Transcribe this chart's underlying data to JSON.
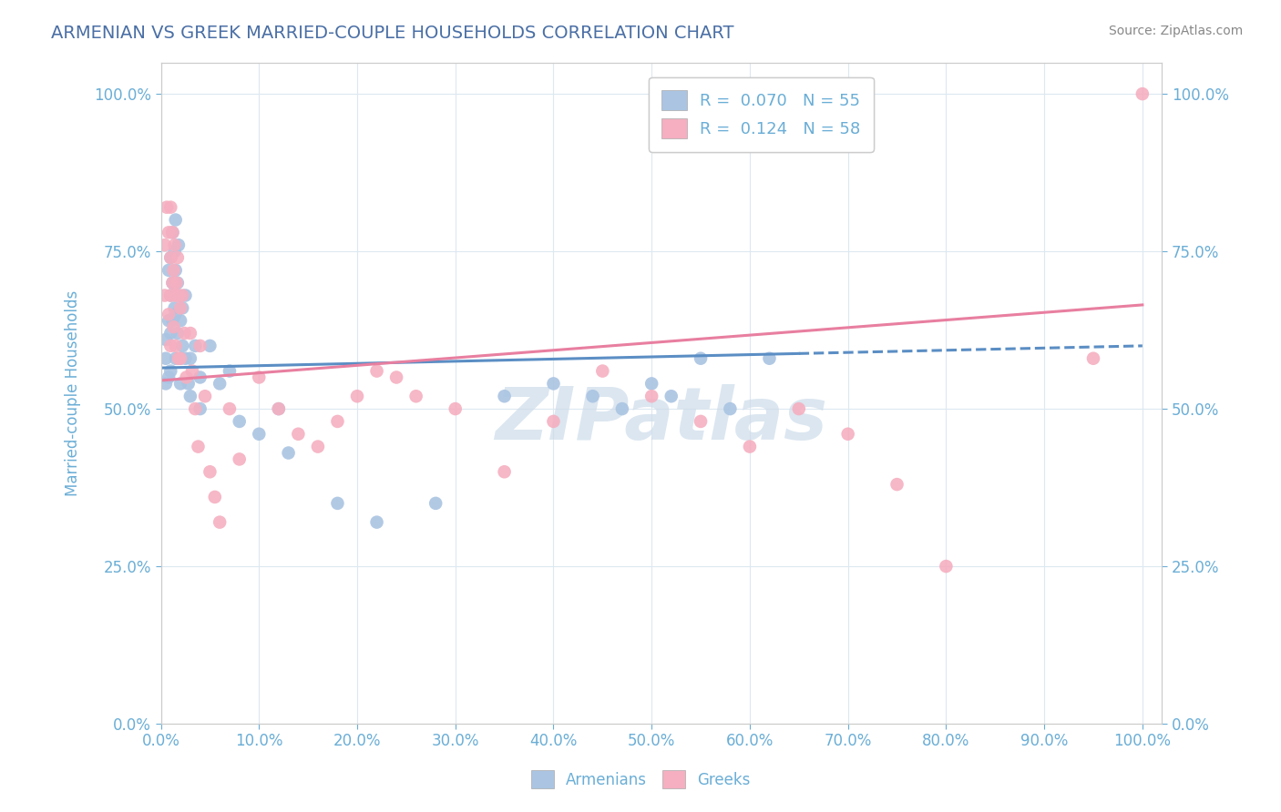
{
  "title": "ARMENIAN VS GREEK MARRIED-COUPLE HOUSEHOLDS CORRELATION CHART",
  "source": "Source: ZipAtlas.com",
  "ylabel": "Married-couple Households",
  "armenian_R": 0.07,
  "armenian_N": 55,
  "greek_R": 0.124,
  "greek_N": 58,
  "armenian_color": "#aac4e2",
  "greek_color": "#f5afc0",
  "armenian_line_color": "#5b8ec4",
  "greek_line_color": "#e87fa0",
  "title_color": "#4a6fa5",
  "source_color": "#888888",
  "axis_color": "#6baed6",
  "watermark_color": "#cddcea",
  "background_color": "#ffffff",
  "grid_color": "#dce8f0",
  "armenian_scatter_x": [
    0.005,
    0.005,
    0.005,
    0.008,
    0.008,
    0.008,
    0.01,
    0.01,
    0.01,
    0.01,
    0.012,
    0.012,
    0.012,
    0.014,
    0.014,
    0.015,
    0.015,
    0.015,
    0.015,
    0.017,
    0.017,
    0.018,
    0.018,
    0.02,
    0.02,
    0.02,
    0.022,
    0.022,
    0.025,
    0.025,
    0.028,
    0.03,
    0.03,
    0.035,
    0.04,
    0.04,
    0.05,
    0.06,
    0.07,
    0.08,
    0.1,
    0.12,
    0.13,
    0.18,
    0.22,
    0.28,
    0.35,
    0.4,
    0.44,
    0.47,
    0.5,
    0.52,
    0.55,
    0.58,
    0.62
  ],
  "armenian_scatter_y": [
    0.58,
    0.54,
    0.61,
    0.72,
    0.64,
    0.55,
    0.74,
    0.68,
    0.62,
    0.56,
    0.78,
    0.7,
    0.64,
    0.75,
    0.66,
    0.8,
    0.72,
    0.65,
    0.58,
    0.7,
    0.62,
    0.76,
    0.68,
    0.64,
    0.58,
    0.54,
    0.66,
    0.6,
    0.68,
    0.58,
    0.54,
    0.58,
    0.52,
    0.6,
    0.55,
    0.5,
    0.6,
    0.54,
    0.56,
    0.48,
    0.46,
    0.5,
    0.43,
    0.35,
    0.32,
    0.35,
    0.52,
    0.54,
    0.52,
    0.5,
    0.54,
    0.52,
    0.58,
    0.5,
    0.58
  ],
  "greek_scatter_x": [
    0.004,
    0.004,
    0.006,
    0.008,
    0.008,
    0.01,
    0.01,
    0.01,
    0.01,
    0.012,
    0.012,
    0.013,
    0.013,
    0.014,
    0.015,
    0.015,
    0.016,
    0.017,
    0.018,
    0.018,
    0.02,
    0.02,
    0.022,
    0.024,
    0.026,
    0.03,
    0.032,
    0.035,
    0.038,
    0.04,
    0.045,
    0.05,
    0.055,
    0.06,
    0.07,
    0.08,
    0.1,
    0.12,
    0.14,
    0.16,
    0.18,
    0.2,
    0.22,
    0.24,
    0.26,
    0.3,
    0.35,
    0.4,
    0.45,
    0.5,
    0.55,
    0.6,
    0.65,
    0.7,
    0.75,
    0.8,
    0.95,
    1.0
  ],
  "greek_scatter_y": [
    0.76,
    0.68,
    0.82,
    0.78,
    0.65,
    0.82,
    0.74,
    0.68,
    0.6,
    0.78,
    0.7,
    0.72,
    0.63,
    0.76,
    0.68,
    0.6,
    0.7,
    0.74,
    0.68,
    0.58,
    0.66,
    0.58,
    0.68,
    0.62,
    0.55,
    0.62,
    0.56,
    0.5,
    0.44,
    0.6,
    0.52,
    0.4,
    0.36,
    0.32,
    0.5,
    0.42,
    0.55,
    0.5,
    0.46,
    0.44,
    0.48,
    0.52,
    0.56,
    0.55,
    0.52,
    0.5,
    0.4,
    0.48,
    0.56,
    0.52,
    0.48,
    0.44,
    0.5,
    0.46,
    0.38,
    0.25,
    0.58,
    1.0
  ],
  "xlim": [
    0.0,
    1.02
  ],
  "ylim": [
    0.0,
    1.05
  ],
  "x_ticks": [
    0.0,
    0.1,
    0.2,
    0.3,
    0.4,
    0.5,
    0.6,
    0.7,
    0.8,
    0.9,
    1.0
  ],
  "y_ticks": [
    0.0,
    0.25,
    0.5,
    0.75,
    1.0
  ]
}
